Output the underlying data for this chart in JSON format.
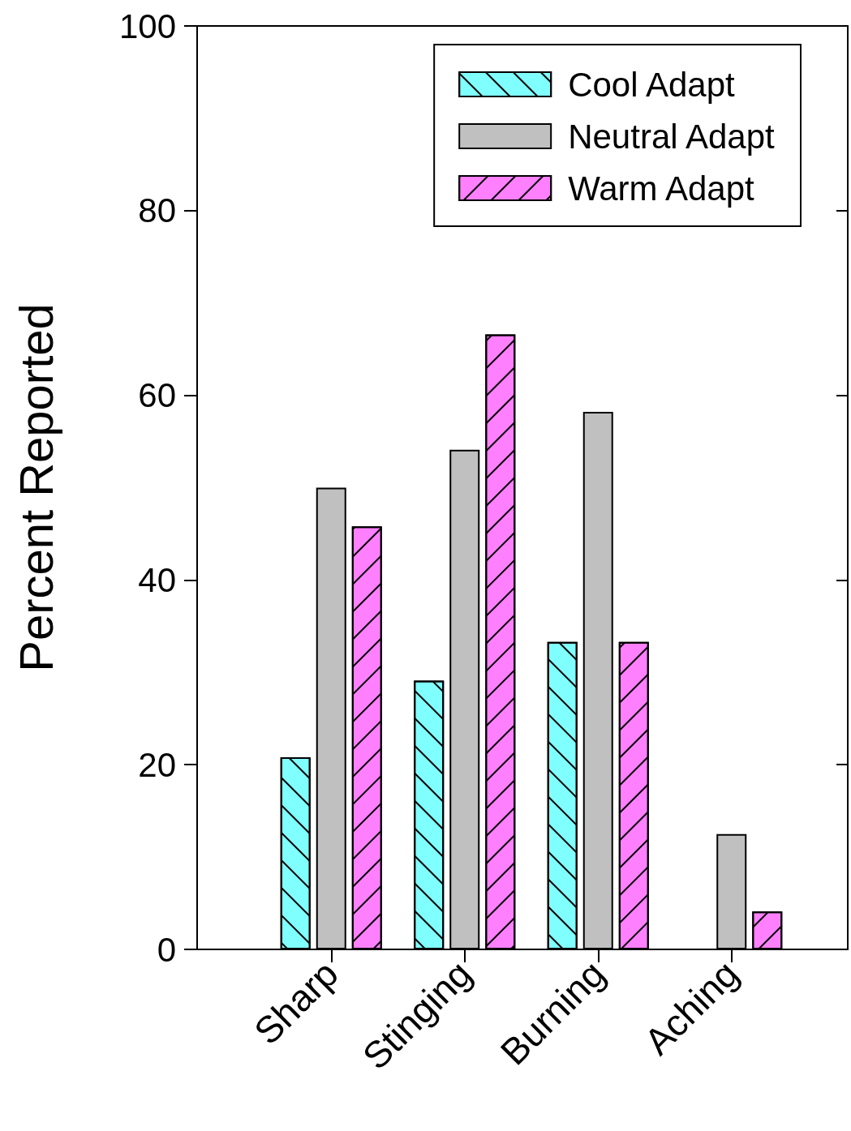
{
  "chart_data": {
    "type": "bar",
    "ylabel": "Percent Reported",
    "categories": [
      "Sharp",
      "Stinging",
      "Burning",
      "Aching"
    ],
    "series": [
      {
        "name": "Cool Adapt",
        "color": "#80ffff",
        "values": [
          20.8,
          29.1,
          33.3,
          null
        ]
      },
      {
        "name": "Neutral Adapt",
        "color": "#c0c0c0",
        "values": [
          50,
          54.1,
          58.2,
          12.5
        ]
      },
      {
        "name": "Warm Adapt",
        "color": "#ff80ff",
        "values": [
          45.8,
          66.6,
          33.3,
          4.1
        ]
      }
    ],
    "ylim": [
      0,
      100
    ],
    "yticks": [
      0,
      20,
      40,
      60,
      80,
      100
    ],
    "grid": false,
    "legend": "top right"
  }
}
